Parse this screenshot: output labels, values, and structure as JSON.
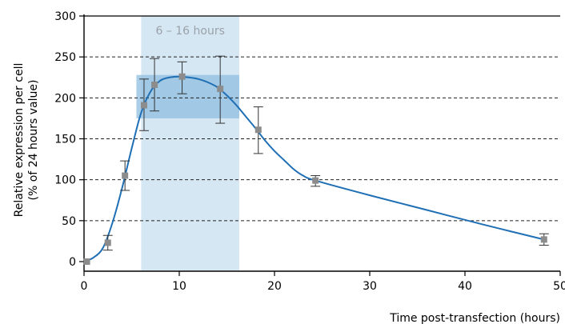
{
  "chart_data": {
    "type": "line",
    "title": "",
    "xlabel": "Time post-transfection (hours)",
    "ylabel": [
      "Relative expression per cell",
      "(% of 24 hours value)"
    ],
    "xlim": [
      0,
      50
    ],
    "ylim": [
      0,
      300
    ],
    "x_ticks": [
      0,
      10,
      20,
      30,
      40,
      50
    ],
    "y_ticks": [
      0,
      50,
      100,
      150,
      200,
      250,
      300
    ],
    "grid": "horizontal dashed",
    "points": [
      {
        "x": 0.3,
        "y": 0,
        "err_low": 0,
        "err_high": 0
      },
      {
        "x": 2.5,
        "y": 23,
        "err_low": 14,
        "err_high": 32
      },
      {
        "x": 4.3,
        "y": 105,
        "err_low": 87,
        "err_high": 123
      },
      {
        "x": 6.3,
        "y": 191,
        "err_low": 160,
        "err_high": 223
      },
      {
        "x": 7.4,
        "y": 216,
        "err_low": 184,
        "err_high": 248
      },
      {
        "x": 10.3,
        "y": 226,
        "err_low": 205,
        "err_high": 244
      },
      {
        "x": 14.3,
        "y": 211,
        "err_low": 169,
        "err_high": 251
      },
      {
        "x": 18.3,
        "y": 161,
        "err_low": 132,
        "err_high": 189
      },
      {
        "x": 24.3,
        "y": 99,
        "err_low": 92,
        "err_high": 105
      },
      {
        "x": 48.3,
        "y": 27,
        "err_low": 20,
        "err_high": 34
      }
    ],
    "curve": [
      [
        0.0,
        0
      ],
      [
        1.0,
        5
      ],
      [
        2.0,
        17
      ],
      [
        3.0,
        48
      ],
      [
        4.0,
        90
      ],
      [
        5.0,
        138
      ],
      [
        6.0,
        182
      ],
      [
        7.0,
        208
      ],
      [
        8.0,
        221
      ],
      [
        9.0,
        225
      ],
      [
        10.0,
        226
      ],
      [
        11.0,
        225
      ],
      [
        12.0,
        223
      ],
      [
        13.0,
        219
      ],
      [
        14.0,
        213
      ],
      [
        15.0,
        203
      ],
      [
        16.0,
        191
      ],
      [
        17.0,
        177
      ],
      [
        18.0,
        163
      ],
      [
        19.0,
        148
      ],
      [
        20.0,
        135
      ],
      [
        21.0,
        124
      ],
      [
        22.0,
        113
      ],
      [
        23.0,
        105
      ],
      [
        24.3,
        99
      ],
      [
        30.0,
        81
      ],
      [
        36.0,
        63
      ],
      [
        42.0,
        45
      ],
      [
        48.3,
        27
      ]
    ],
    "highlight_band": {
      "label": "6 – 16 hours",
      "x": [
        6,
        16.3
      ]
    },
    "peak_box": {
      "x": [
        5.5,
        16.3
      ],
      "y": [
        175,
        228
      ]
    },
    "colors": {
      "line": "#1f6fb5",
      "marker": "#8c8c8c",
      "band": "#d6e7f4",
      "box": "#8fbde0",
      "band_label": "#9aa2a9",
      "axis": "#000000"
    }
  }
}
